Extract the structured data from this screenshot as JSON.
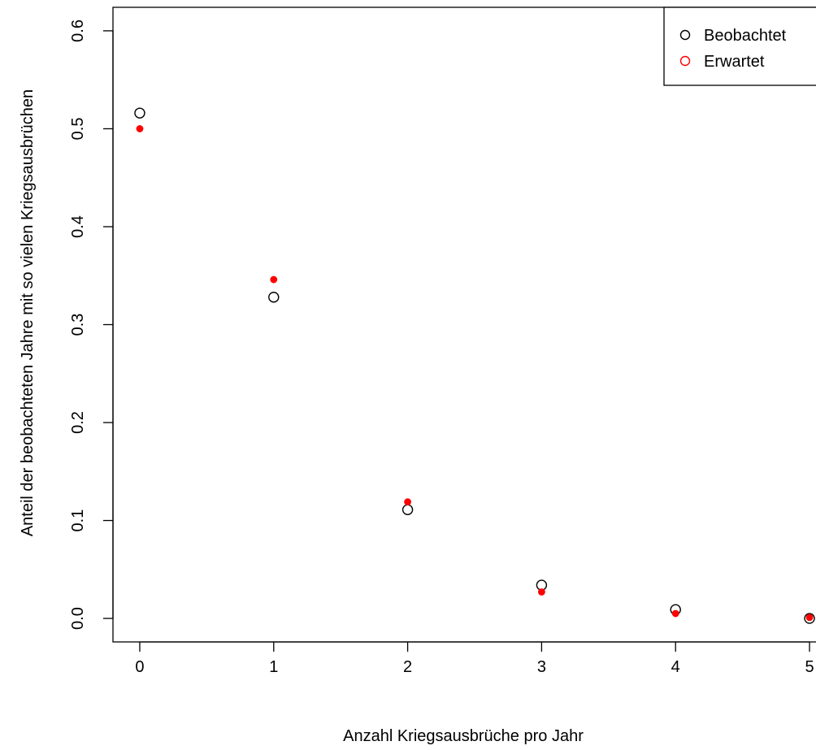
{
  "chart_data": {
    "type": "scatter",
    "title": "",
    "xlabel": "Anzahl Kriegsausbrüche pro Jahr",
    "ylabel": "Anteil der beobachteten Jahre mit so vielen Kriegsausbrüchen",
    "xlim": [
      -0.2,
      5.2
    ],
    "ylim": [
      -0.024,
      0.624
    ],
    "x_ticks": [
      "0",
      "1",
      "2",
      "3",
      "4",
      "5"
    ],
    "y_ticks": [
      "0.0",
      "0.1",
      "0.2",
      "0.3",
      "0.4",
      "0.5",
      "0.6"
    ],
    "grid": false,
    "legend_position": "top-right",
    "series": [
      {
        "name": "Beobachtet",
        "marker": "open-circle",
        "color": "#000000",
        "x": [
          0,
          1,
          2,
          3,
          4,
          5
        ],
        "y": [
          0.516,
          0.328,
          0.111,
          0.034,
          0.009,
          0.0
        ]
      },
      {
        "name": "Erwartet",
        "marker": "filled-circle",
        "legend_marker": "open-circle",
        "color": "#ff0000",
        "x": [
          0,
          1,
          2,
          3,
          4,
          5
        ],
        "y": [
          0.5,
          0.346,
          0.119,
          0.027,
          0.005,
          0.001
        ]
      }
    ]
  }
}
